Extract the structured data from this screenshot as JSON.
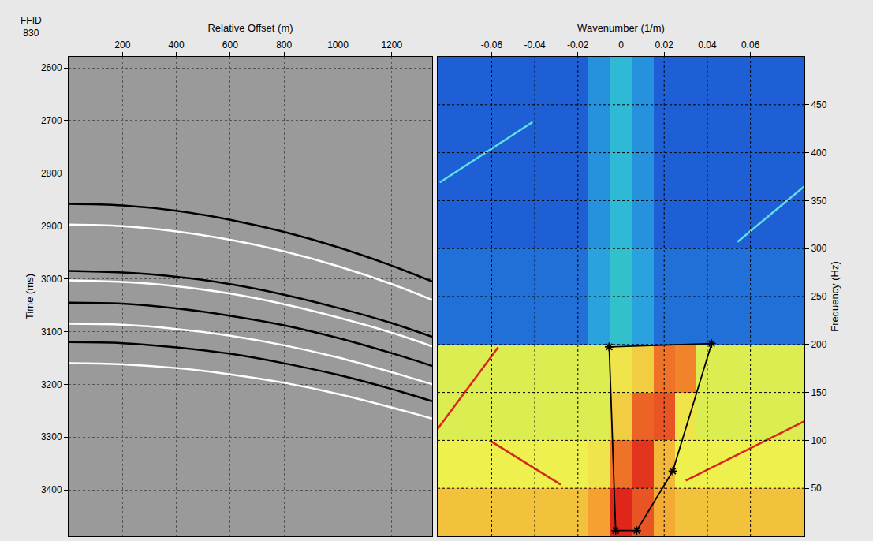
{
  "chart_data": [
    {
      "type": "line",
      "annotations": [
        "FFID",
        "830"
      ],
      "x_label": "Relative Offset (m)",
      "y_label": "Time (ms)",
      "xlim": [
        0,
        1350
      ],
      "ylim": [
        3488,
        2579
      ],
      "xticks": [
        200,
        400,
        600,
        800,
        1000,
        1200
      ],
      "yticks": [
        2600,
        2700,
        2800,
        2900,
        3000,
        3100,
        3200,
        3300,
        3400
      ],
      "grid": true,
      "x": [
        0,
        200,
        400,
        600,
        800,
        1000,
        1200,
        1350
      ],
      "series": [
        {
          "color": "#000000",
          "values": [
            2858,
            2861,
            2871,
            2888,
            2911,
            2940,
            2975,
            3005
          ]
        },
        {
          "color": "#ffffff",
          "values": [
            2897,
            2900,
            2910,
            2926,
            2948,
            2976,
            3010,
            3040
          ]
        },
        {
          "color": "#000000",
          "values": [
            2985,
            2988,
            2996,
            3010,
            3030,
            3055,
            3084,
            3110
          ]
        },
        {
          "color": "#ffffff",
          "values": [
            3003,
            3006,
            3014,
            3028,
            3048,
            3073,
            3102,
            3128
          ]
        },
        {
          "color": "#000000",
          "values": [
            3045,
            3047,
            3056,
            3070,
            3088,
            3112,
            3141,
            3165
          ]
        },
        {
          "color": "#ffffff",
          "values": [
            3085,
            3087,
            3095,
            3108,
            3126,
            3149,
            3177,
            3200
          ]
        },
        {
          "color": "#000000",
          "values": [
            3120,
            3122,
            3130,
            3142,
            3160,
            3182,
            3209,
            3232
          ]
        },
        {
          "color": "#ffffff",
          "values": [
            3160,
            3162,
            3169,
            3181,
            3197,
            3218,
            3244,
            3265
          ]
        }
      ]
    },
    {
      "type": "heatmap",
      "x_label": "Wavenumber (1/m)",
      "y_label": "Frequency (Hz)",
      "xlim": [
        -0.085,
        0.085
      ],
      "ylim": [
        0,
        500
      ],
      "xticks": [
        -0.06,
        -0.04,
        -0.02,
        0,
        0.02,
        0.04,
        0.06
      ],
      "yticks": [
        50,
        100,
        150,
        200,
        250,
        300,
        350,
        400,
        450
      ],
      "grid": true,
      "x": [
        -0.08,
        -0.07,
        -0.06,
        -0.05,
        -0.04,
        -0.03,
        -0.02,
        -0.01,
        0,
        0.01,
        0.02,
        0.03,
        0.04,
        0.05,
        0.06,
        0.07,
        0.08
      ],
      "y": [
        25,
        75,
        125,
        175,
        225,
        275,
        325,
        375,
        425,
        475
      ],
      "zlim": [
        0,
        100
      ],
      "cells": [
        [
          68,
          68,
          68,
          68,
          68,
          68,
          68,
          74,
          90,
          84,
          72,
          68,
          68,
          68,
          68,
          68,
          68
        ],
        [
          60,
          60,
          60,
          60,
          60,
          60,
          60,
          62,
          80,
          88,
          70,
          60,
          60,
          60,
          60,
          60,
          60
        ],
        [
          58,
          58,
          58,
          58,
          58,
          58,
          58,
          58,
          66,
          82,
          84,
          62,
          58,
          58,
          58,
          58,
          58
        ],
        [
          58,
          58,
          58,
          58,
          58,
          58,
          58,
          58,
          62,
          66,
          80,
          78,
          58,
          58,
          58,
          58,
          58
        ],
        [
          22,
          22,
          22,
          22,
          22,
          22,
          22,
          28,
          34,
          28,
          22,
          22,
          22,
          22,
          22,
          22,
          22
        ],
        [
          22,
          22,
          22,
          22,
          22,
          22,
          22,
          28,
          34,
          28,
          22,
          22,
          22,
          22,
          22,
          22,
          22
        ],
        [
          20,
          20,
          20,
          20,
          20,
          20,
          20,
          26,
          32,
          26,
          20,
          20,
          20,
          20,
          20,
          20,
          20
        ],
        [
          20,
          20,
          20,
          20,
          20,
          20,
          20,
          26,
          32,
          26,
          20,
          20,
          20,
          20,
          20,
          20,
          20
        ],
        [
          20,
          20,
          20,
          20,
          20,
          20,
          20,
          26,
          32,
          26,
          20,
          20,
          20,
          20,
          20,
          20,
          20
        ],
        [
          20,
          20,
          20,
          20,
          20,
          20,
          20,
          26,
          32,
          26,
          20,
          20,
          20,
          20,
          20,
          20,
          20
        ]
      ],
      "series": [
        {
          "type": "line",
          "color": "#d8261a",
          "x": [
            -0.085,
            -0.057
          ],
          "values": [
            112,
            197
          ]
        },
        {
          "type": "line",
          "color": "#d8261a",
          "x": [
            -0.061,
            -0.028
          ],
          "values": [
            100,
            54
          ]
        },
        {
          "type": "line",
          "color": "#d8261a",
          "x": [
            0.03,
            0.085
          ],
          "values": [
            58,
            120
          ]
        },
        {
          "type": "line",
          "color": "#5fe0e8",
          "x": [
            -0.084,
            -0.041
          ],
          "values": [
            369,
            432
          ]
        },
        {
          "type": "line",
          "color": "#5fe0e8",
          "x": [
            0.054,
            0.085
          ],
          "values": [
            307,
            365
          ]
        },
        {
          "type": "line",
          "color": "#000000",
          "marker": "star",
          "x": [
            -0.0055,
            0.042,
            0.024,
            0.0073,
            -0.0025,
            -0.0055
          ],
          "values": [
            197.5,
            201,
            68,
            6,
            6,
            197.5
          ]
        }
      ]
    }
  ]
}
